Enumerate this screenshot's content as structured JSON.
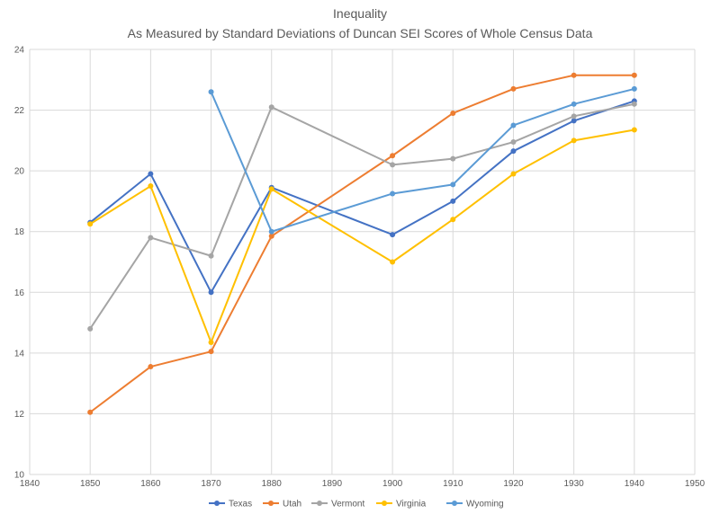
{
  "chart_data": {
    "type": "line",
    "title": "Inequality",
    "subtitle": "As Measured by Standard Deviations of Duncan SEI Scores of Whole Census Data",
    "xlabel": "",
    "ylabel": "",
    "xlim": [
      1840,
      1950
    ],
    "ylim": [
      10,
      24
    ],
    "x_ticks": [
      1840,
      1850,
      1860,
      1870,
      1880,
      1890,
      1900,
      1910,
      1920,
      1930,
      1940,
      1950
    ],
    "y_ticks": [
      10,
      12,
      14,
      16,
      18,
      20,
      22,
      24
    ],
    "grid": true,
    "legend_position": "bottom",
    "series": [
      {
        "name": "Texas",
        "color": "#4472C4",
        "x": [
          1850,
          1860,
          1870,
          1880,
          1900,
          1910,
          1920,
          1930,
          1940
        ],
        "values": [
          18.3,
          19.9,
          16.0,
          19.45,
          17.9,
          19.0,
          20.65,
          21.65,
          22.3
        ]
      },
      {
        "name": "Utah",
        "color": "#ED7D31",
        "x": [
          1850,
          1860,
          1870,
          1880,
          1900,
          1910,
          1920,
          1930,
          1940
        ],
        "values": [
          12.05,
          13.55,
          14.05,
          17.85,
          20.5,
          21.9,
          22.7,
          23.15,
          23.15
        ]
      },
      {
        "name": "Vermont",
        "color": "#A5A5A5",
        "x": [
          1850,
          1860,
          1870,
          1880,
          1900,
          1910,
          1920,
          1930,
          1940
        ],
        "values": [
          14.8,
          17.8,
          17.2,
          22.1,
          20.2,
          20.4,
          20.95,
          21.8,
          22.2
        ]
      },
      {
        "name": "Virginia",
        "color": "#FFC000",
        "x": [
          1850,
          1860,
          1870,
          1880,
          1900,
          1910,
          1920,
          1930,
          1940
        ],
        "values": [
          18.25,
          19.5,
          14.35,
          19.4,
          17.0,
          18.4,
          19.9,
          21.0,
          21.35
        ]
      },
      {
        "name": "Wyoming",
        "color": "#5B9BD5",
        "x": [
          1870,
          1880,
          1900,
          1910,
          1920,
          1930,
          1940
        ],
        "values": [
          22.6,
          18.0,
          19.25,
          19.55,
          21.5,
          22.2,
          22.7
        ]
      }
    ]
  }
}
